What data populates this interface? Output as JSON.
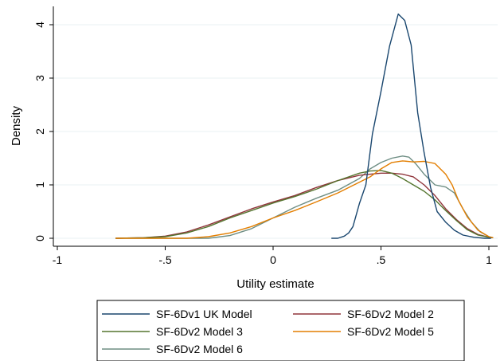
{
  "chart_data": {
    "type": "line",
    "title": "",
    "xlabel": "Utility estimate",
    "ylabel": "Density",
    "xlim": [
      -1,
      1.05
    ],
    "ylim": [
      0,
      4.35
    ],
    "x_ticks": [
      -1,
      -0.5,
      0,
      0.5,
      1
    ],
    "x_tick_labels": [
      "-1",
      "-.5",
      "0",
      ".5",
      "1"
    ],
    "y_ticks": [
      0,
      1,
      2,
      3,
      4
    ],
    "y_tick_labels": [
      "0",
      "1",
      "2",
      "3",
      "4"
    ],
    "grid": true,
    "legend_position": "bottom",
    "series": [
      {
        "name": "SF-6Dv1 UK Model",
        "color": "#1a476f",
        "points": [
          [
            0.27,
            0.0
          ],
          [
            0.3,
            0.0
          ],
          [
            0.33,
            0.04
          ],
          [
            0.35,
            0.1
          ],
          [
            0.37,
            0.22
          ],
          [
            0.4,
            0.65
          ],
          [
            0.43,
            1.0
          ],
          [
            0.46,
            1.95
          ],
          [
            0.5,
            2.75
          ],
          [
            0.54,
            3.6
          ],
          [
            0.58,
            4.2
          ],
          [
            0.61,
            4.08
          ],
          [
            0.64,
            3.62
          ],
          [
            0.67,
            2.35
          ],
          [
            0.7,
            1.6
          ],
          [
            0.73,
            0.95
          ],
          [
            0.76,
            0.5
          ],
          [
            0.8,
            0.3
          ],
          [
            0.84,
            0.15
          ],
          [
            0.88,
            0.06
          ],
          [
            0.93,
            0.02
          ],
          [
            0.98,
            0.0
          ],
          [
            1.01,
            0.0
          ]
        ]
      },
      {
        "name": "SF-6Dv2 Model 2",
        "color": "#90353b",
        "points": [
          [
            -0.73,
            0.0
          ],
          [
            -0.6,
            0.01
          ],
          [
            -0.5,
            0.04
          ],
          [
            -0.4,
            0.12
          ],
          [
            -0.3,
            0.25
          ],
          [
            -0.2,
            0.4
          ],
          [
            -0.1,
            0.55
          ],
          [
            0.0,
            0.68
          ],
          [
            0.1,
            0.8
          ],
          [
            0.2,
            0.95
          ],
          [
            0.3,
            1.08
          ],
          [
            0.4,
            1.18
          ],
          [
            0.45,
            1.2
          ],
          [
            0.5,
            1.22
          ],
          [
            0.55,
            1.22
          ],
          [
            0.6,
            1.2
          ],
          [
            0.65,
            1.15
          ],
          [
            0.7,
            1.0
          ],
          [
            0.75,
            0.8
          ],
          [
            0.8,
            0.55
          ],
          [
            0.85,
            0.35
          ],
          [
            0.9,
            0.18
          ],
          [
            0.95,
            0.07
          ],
          [
            1.0,
            0.02
          ],
          [
            1.02,
            0.01
          ]
        ]
      },
      {
        "name": "SF-6Dv2 Model 3",
        "color": "#55752f",
        "points": [
          [
            -0.73,
            0.0
          ],
          [
            -0.6,
            0.01
          ],
          [
            -0.5,
            0.03
          ],
          [
            -0.4,
            0.1
          ],
          [
            -0.3,
            0.22
          ],
          [
            -0.2,
            0.38
          ],
          [
            -0.1,
            0.52
          ],
          [
            0.0,
            0.66
          ],
          [
            0.1,
            0.78
          ],
          [
            0.2,
            0.92
          ],
          [
            0.3,
            1.08
          ],
          [
            0.4,
            1.22
          ],
          [
            0.45,
            1.26
          ],
          [
            0.5,
            1.27
          ],
          [
            0.55,
            1.22
          ],
          [
            0.6,
            1.12
          ],
          [
            0.65,
            1.0
          ],
          [
            0.7,
            0.88
          ],
          [
            0.75,
            0.72
          ],
          [
            0.8,
            0.52
          ],
          [
            0.85,
            0.33
          ],
          [
            0.9,
            0.16
          ],
          [
            0.95,
            0.06
          ],
          [
            1.0,
            0.02
          ],
          [
            1.02,
            0.01
          ]
        ]
      },
      {
        "name": "SF-6Dv2 Model 5",
        "color": "#e37e00",
        "points": [
          [
            -0.73,
            0.0
          ],
          [
            -0.4,
            0.0
          ],
          [
            -0.3,
            0.03
          ],
          [
            -0.2,
            0.1
          ],
          [
            -0.1,
            0.22
          ],
          [
            0.0,
            0.38
          ],
          [
            0.1,
            0.52
          ],
          [
            0.2,
            0.68
          ],
          [
            0.3,
            0.85
          ],
          [
            0.4,
            1.05
          ],
          [
            0.45,
            1.15
          ],
          [
            0.5,
            1.3
          ],
          [
            0.55,
            1.42
          ],
          [
            0.6,
            1.45
          ],
          [
            0.65,
            1.43
          ],
          [
            0.7,
            1.44
          ],
          [
            0.75,
            1.4
          ],
          [
            0.8,
            1.2
          ],
          [
            0.83,
            1.0
          ],
          [
            0.86,
            0.7
          ],
          [
            0.9,
            0.4
          ],
          [
            0.95,
            0.15
          ],
          [
            1.0,
            0.03
          ],
          [
            1.02,
            0.01
          ]
        ]
      },
      {
        "name": "SF-6Dv2 Model 6",
        "color": "#6e8e84",
        "points": [
          [
            -0.73,
            0.0
          ],
          [
            -0.3,
            0.0
          ],
          [
            -0.2,
            0.05
          ],
          [
            -0.1,
            0.18
          ],
          [
            0.0,
            0.38
          ],
          [
            0.1,
            0.58
          ],
          [
            0.2,
            0.75
          ],
          [
            0.3,
            0.9
          ],
          [
            0.4,
            1.12
          ],
          [
            0.45,
            1.3
          ],
          [
            0.5,
            1.42
          ],
          [
            0.55,
            1.5
          ],
          [
            0.6,
            1.54
          ],
          [
            0.63,
            1.52
          ],
          [
            0.66,
            1.4
          ],
          [
            0.7,
            1.2
          ],
          [
            0.75,
            1.0
          ],
          [
            0.8,
            0.96
          ],
          [
            0.84,
            0.85
          ],
          [
            0.88,
            0.55
          ],
          [
            0.92,
            0.3
          ],
          [
            0.96,
            0.12
          ],
          [
            1.0,
            0.03
          ],
          [
            1.02,
            0.01
          ]
        ]
      }
    ]
  }
}
